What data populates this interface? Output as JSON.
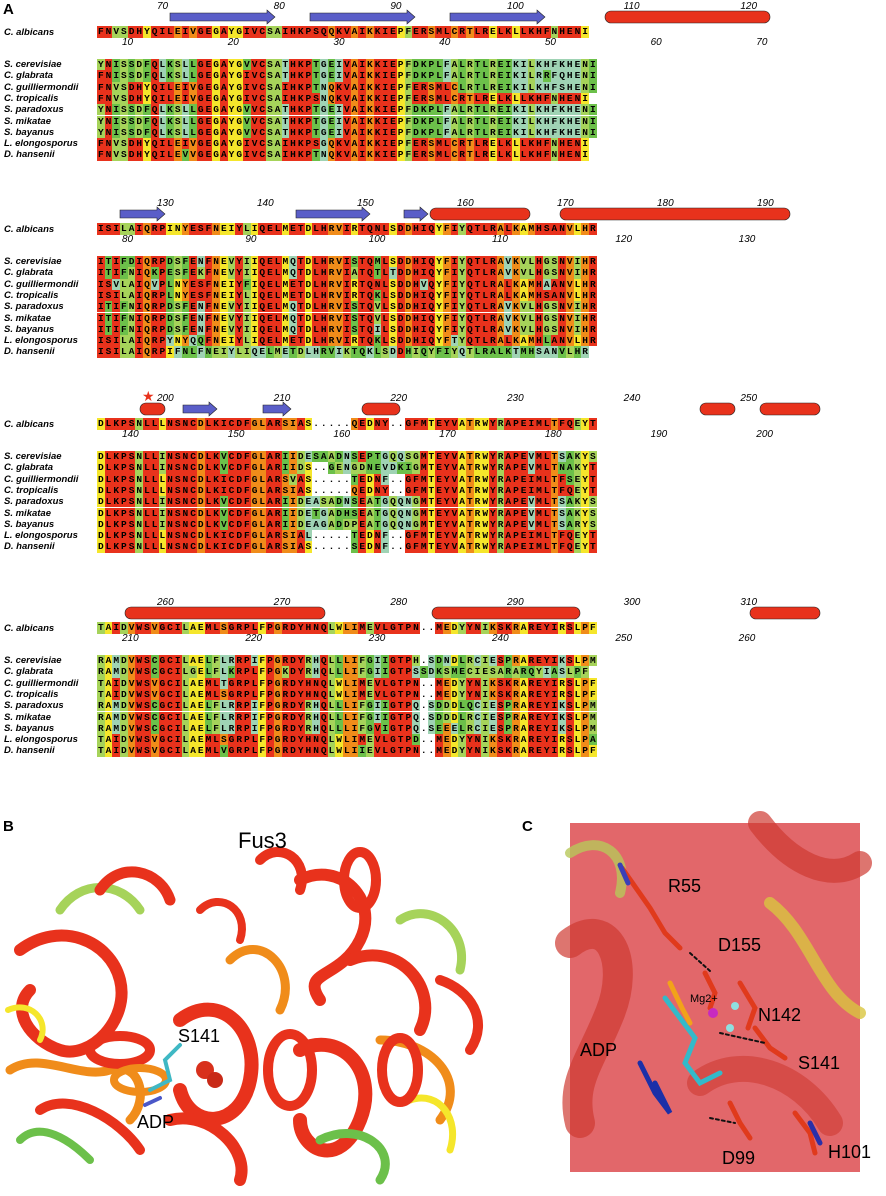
{
  "figure": {
    "panel_a": "A",
    "panel_b": "B",
    "panel_c": "C",
    "colors": {
      "red": "#e8321c",
      "orange": "#f08c1a",
      "yellow": "#f5e62b",
      "lightgreen": "#a6d35a",
      "green": "#6cc04a",
      "teal": "#9fd3b4",
      "white": "#ffffff",
      "strand": "#5a5ec8",
      "helix": "#e8321c"
    }
  },
  "alignment": {
    "query": "C. albicans",
    "species": [
      "S. cerevisiae",
      "C. glabrata",
      "C. guilliermondii",
      "C. tropicalis",
      "S. paradoxus",
      "S. mikatae",
      "S. bayanus",
      "L. elongosporus",
      "D. hansenii"
    ],
    "blocks": [
      {
        "top_numbers": [
          "70",
          "80",
          "90",
          "100",
          "110",
          "120"
        ],
        "bottom_numbers": [
          "10",
          "20",
          "30",
          "40",
          "50",
          "60",
          "70"
        ],
        "query_seq": "FNVSDHYQILEIVGEGAYGIVCSAIHKPSQQKVAIKKIEPFERSMLCRTLRELKLLKHFNHENI",
        "seqs": [
          "YNISSDFQLKSLLGEGAYGVVCSATHKPTGEIVAIKKIEPFDKPLFALRTLREIKILKHFKHENI",
          "FNISSDFQLKSLLGEGAYGIVCSATHKPTGEIVAIKKIEPFDKPLFALRTLREIKILRRFQHENI",
          "FNVSDHYQILEIVGEGAYGIVCSAIHKPTNQKVAIKKIEPFERSMLCLRTLREIKILKHFSHENI",
          "FNVSDHYQILEIVGEGAYGIVCSAIHKPSNQKVAIKKIEPFERSMLCRTLRELKLLKHFNHENI",
          "YNISSDFQLKSLLGEGAYGVVCSATHKPTGEIVAIKKIEPFDKPLFALRTLREIKILKHFKHENI",
          "YNISSDFQLKSLLGEGAYGVVCSATHKPTGEIVAIKKIEPFDKPLFALRTLREIKILKHFKHENI",
          "YNISSDFQLKSLLGEGAYGVVCSATHKPTGEIVAIKKIEPFDKPLFALRTLREIKILKHFKHENI",
          "FNVSDHYQILEIVGEGAYGIVCSAIHKPSGQKVAIKKIEPFERSMLCRTLRELKLLKHFNHENI",
          "FNVSDHYQILEVVGEGAYGIVCSAIHKPTNQKVAIKKIEPFERSMLCRTLRELKLLKHFNHENI"
        ]
      },
      {
        "top_numbers": [
          "130",
          "140",
          "150",
          "160",
          "170",
          "180",
          "190"
        ],
        "bottom_numbers": [
          "80",
          "90",
          "100",
          "110",
          "120",
          "130"
        ],
        "query_seq": "ISILAIQRPINYESFNEIYLIQELMETDLHRVIRTQNLSDDHIQYFIYQTLRALKAMHSANVLHR",
        "seqs": [
          "ITIFDIQRPDSFENFNEVYIIQELMQTDLHRVISTQMLSDDHIQYFIYQTLRAVKVLHGSNVIHR",
          "ITIFNIQKPESFEKFNEVYIIQELMQTDLHRVIATQTLTDDHIQYFIYQTLRAVKVLHGSNVIHR",
          "ISVLAIQVPLNYESFNEIYFIQELMETDLHRVIRTQNLSDDHVQYFIYQTLRALKAMHAANVLHR",
          "ISILAIQRPLNYESFNEIYLIQELMETDLHRVIRTQKLSDDHIQYFIYQTLRALKAMHSANVLHR",
          "ITIFNIQRPDSFENFNEVYIIQELMQTDLHRVISTQVLSDDHIQYFIYQTLRAVKVLHGSNVIHR",
          "ITIFNIQRPDSFENFNEVYIIQELMQTDLHRVISTQVLSDDHIQYFIYQTLRAVKVLHGSNVIHR",
          "ITIFNIQRPDSFENFNEVYIIQELMQTDLHRVISTQILSDDHIQYFIYQTLRAVKVLHGSNVIHR",
          "ISILAIQRPYNYQQFNEIYLIQELMETDLHRVIRTQKLSDDHIQYFTYQTLRALKAMHLANVLHR",
          "ISILAIQRPIFNLFNEIYLIQELMETDLHRVIKTQKLSDDHIQYFIYQTLRALKTMHSANVLHR"
        ]
      },
      {
        "top_numbers": [
          "200",
          "210",
          "220",
          "230",
          "240",
          "250"
        ],
        "bottom_numbers": [
          "140",
          "150",
          "160",
          "170",
          "180",
          "190",
          "200"
        ],
        "query_seq": "DLKPSNLLLNSNCDLKICDFGLARSIAS.....QEDNY..GFMTEYVATRWYRAPEIMLTFQEYT",
        "seqs": [
          "DLKPSNLLINSNCDLKVCDFGLARIIDESAADNSEPTGQQSGMTEYVATRWYRAPEVMLTSAKYS",
          "DLKPSNLLINSNCDLKVCDFGLARIIDS..GENGDNEVDKIGMTEYVATRWYRAPEVMLTNAKYT",
          "DLKPSNLLLNSNCDLKICDFGLARSVAS.....TEDNF..GFMTEYVATRWYRAPEIMLTFSEYT",
          "DLKPSNLLLNSNCDLKICDFGLARSIAS.....QEDNY..GFMTEYVATRWYRAPEIMLTFQEYT",
          "DLKPSNLLINSNCDLKVCDFGLARIIDEASADNSEATGQQNGMTEYVATRWYRAPEVMLTSAKYS",
          "DLKPSNLLINSNCDLKVCDFGLARIIDETGADHSEATGQQNGMTEYVATRWYRAPEVMLTSAKYS",
          "DLKPSNLLINSNCDLKVCDFGLARIIDEAGADDPEATGQQNGMTEYVATRWYRAPEVMLTSARYS",
          "DLKPSNLLLNSNCDLKICDFGLARSIAL.....TEDNF..GFMTEYVATRWYRAPEIMLTFQEYT",
          "DLKPSNLLLNSNCDLKICDFGLARSIAS.....SEDNF..GFMTEYVATRWYRAPEIMLTFQEYT"
        ]
      },
      {
        "top_numbers": [
          "260",
          "270",
          "280",
          "290",
          "300",
          "310"
        ],
        "bottom_numbers": [
          "210",
          "220",
          "230",
          "240",
          "250",
          "260"
        ],
        "query_seq": "TAIDVWSVGCILAEMLSGRPLFPGRDYHNQLWLIMEVLGTPN..MEDYYNIKSKRAREYIRSLPF",
        "seqs": [
          "RAMDVWSCGCILAELFLRRPIFPGRDYRHQLLLIFGIIGTPH.SDNDLRCIESPRAREYIKSLPM",
          "RAMDVWSCGCILGELFLKRPLFPGKDYRHQLLLIFGIIGTPSSDKSMECIESARARQYIASLPF",
          "TAIDVWSVGCILAEMLTGRPLFPGRDYHNQLWLIMEVLGTPN..MEDYYNIKSKRAREYIRSLPF",
          "TAIDVWSVGCILAEMLSGRPLFPGRDYHNQLWLIMEVLGTPN..MEDYYNIKSKRAREYIRSLPF",
          "RAMDVWSCGCILAELFLRRPIFPGRDYRHQLLLIFGIIGTPQ.SDDDLQCIESPRAREYIKSLPM",
          "RAMDVWSCGCILAELFLRRPIFPGRDYRHQLLLIFGIIGTPQ.SDDDLRCIESPRAREYIKSLPM",
          "RAMDVWSCGCILAELFLRRPIFPGRDYRHQLLLIFGVIGTPQ.SEEELRCIESPRAREYIKSLPM",
          "TAIDVWSVGCILAEMLSGRPLFPGRDYHNQLWLIMEVLGTPD..MEDYYNIKSKRAREYIRSLPA",
          "TAIDVWSVGCILAEMLVGRPLFPGRDYHNQLWLIIEVLGTPN..MEDYYNIKSKRAREYIRSLPF"
        ]
      }
    ]
  },
  "panel_b": {
    "title": "Fus3",
    "label_residue": "S141",
    "label_ligand": "ADP"
  },
  "panel_c": {
    "labels": [
      "R55",
      "D155",
      "Mg2+",
      "N142",
      "ADP",
      "S141",
      "D99",
      "H101"
    ]
  }
}
